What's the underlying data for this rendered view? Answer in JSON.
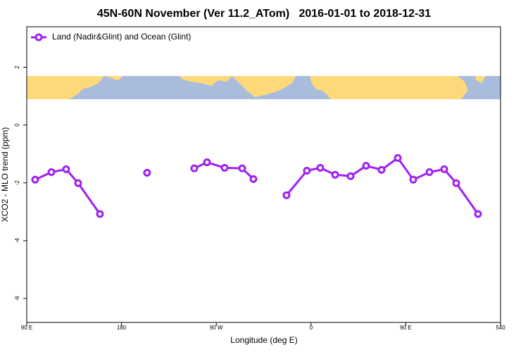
{
  "chart_data": {
    "type": "line",
    "title": "45N-60N November (Ver 11.2_ATom)   2016-01-01 to 2018-12-31",
    "xlabel": "Longitude (deg E)",
    "ylabel": "XCO2 - MLO trend (ppm)",
    "xlim": [
      90,
      540
    ],
    "ylim": [
      -6.83,
      3.4
    ],
    "xticks": [
      {
        "value": 90,
        "label": "90 E"
      },
      180,
      {
        "value": 270,
        "label": "90 W"
      },
      {
        "value": 360,
        "label": "0"
      },
      {
        "value": 450,
        "label": "90 E"
      },
      540
    ],
    "yticks": [
      2,
      0,
      -2,
      -4,
      -6
    ],
    "legend": "top-left",
    "x": [
      98,
      113.4,
      127.4,
      138.8,
      159.5,
      180,
      204.3,
      225,
      249.1,
      261.2,
      277.9,
      294.6,
      305.3,
      320,
      336.7,
      356.1,
      368.8,
      382.9,
      397.6,
      412.3,
      427,
      442.4,
      457.1,
      472.5,
      486.5,
      497.9,
      518.6
    ],
    "series": [
      {
        "name": "Land (Nadir&Glint) and Ocean (Glint)",
        "color": "#a020f0",
        "values": [
          -1.89,
          -1.63,
          -1.53,
          -2.01,
          -3.08,
          null,
          -1.65,
          null,
          -1.5,
          -1.29,
          -1.48,
          -1.5,
          -1.87,
          null,
          -2.43,
          -1.58,
          -1.48,
          -1.72,
          -1.77,
          -1.41,
          -1.55,
          -1.14,
          -1.89,
          -1.63,
          -1.53,
          -2.01,
          -3.08
        ]
      }
    ]
  }
}
